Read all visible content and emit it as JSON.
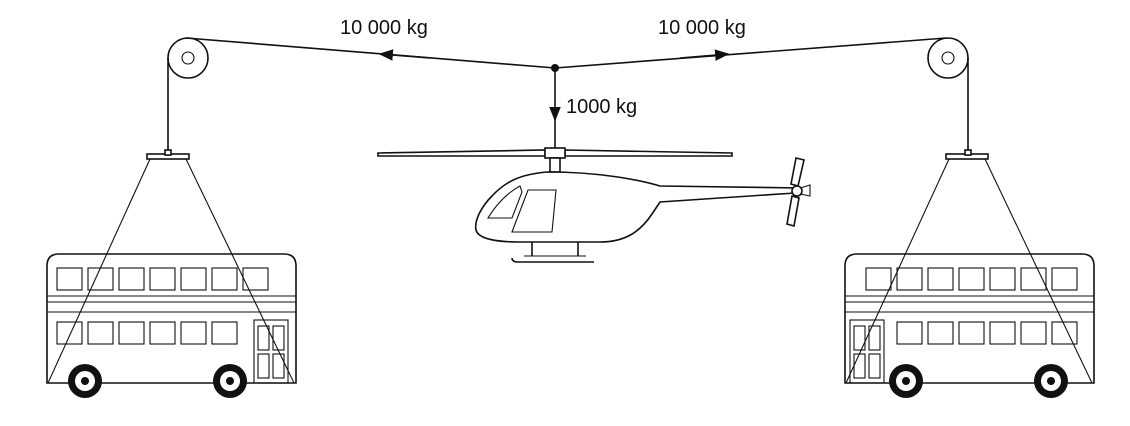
{
  "labels": {
    "tension_left": "10 000 kg",
    "tension_right": "10 000 kg",
    "helicopter_weight": "1000 kg"
  },
  "colors": {
    "ink": "#111111",
    "background": "#ffffff"
  }
}
